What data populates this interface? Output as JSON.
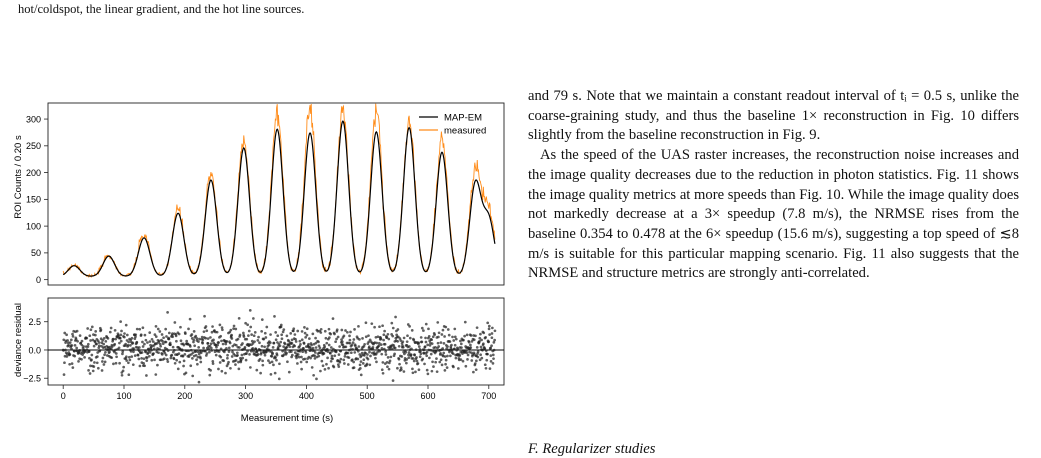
{
  "page": {
    "caption_tail": "hot/coldspot, the linear gradient, and the hot line sources.",
    "top_right_fragment": "",
    "para1": "and 79 s. Note that we maintain a constant readout interval of tᵢ = 0.5 s, unlike the coarse-graining study, and thus the baseline 1× reconstruction in Fig. 10 differs slightly from the baseline reconstruction in Fig. 9.",
    "para2": "As the speed of the UAS raster increases, the reconstruction noise increases and the image quality decreases due to the reduction in photon statistics. Fig. 11 shows the image quality metrics at more speeds than Fig. 10. While the image quality does not markedly decrease at a 3× speedup (7.8 m/s), the NRMSE rises from the baseline 0.354 to 0.478 at the 6× speedup (15.6 m/s), suggesting a top speed of ≲8 m/s is suitable for this particular mapping scenario. Fig. 11 also suggests that the NRMSE and structure metrics are strongly anti-correlated.",
    "section_heading": "F. Regularizer studies"
  },
  "chart_data": [
    {
      "type": "line",
      "ylabel": "ROI Counts / 0.20 s",
      "ylim": [
        -10,
        330
      ],
      "yticks": [
        0,
        50,
        100,
        150,
        200,
        250,
        300
      ],
      "xlim": [
        -25,
        725
      ],
      "legend_placement": "top-right",
      "series": [
        {
          "name": "MAP-EM",
          "color": "#000000",
          "peaks": [
            {
              "t": 18,
              "h": 20
            },
            {
              "t": 75,
              "h": 38
            },
            {
              "t": 133,
              "h": 72
            },
            {
              "t": 189,
              "h": 118
            },
            {
              "t": 243,
              "h": 180
            },
            {
              "t": 297,
              "h": 240
            },
            {
              "t": 352,
              "h": 275
            },
            {
              "t": 406,
              "h": 268
            },
            {
              "t": 460,
              "h": 290
            },
            {
              "t": 515,
              "h": 270
            },
            {
              "t": 569,
              "h": 278
            },
            {
              "t": 623,
              "h": 232
            },
            {
              "t": 678,
              "h": 172
            },
            {
              "t": 700,
              "h": 105
            }
          ]
        },
        {
          "name": "measured",
          "color": "#ff8c1a",
          "peaks": [
            {
              "t": 18,
              "h": 22
            },
            {
              "t": 75,
              "h": 40
            },
            {
              "t": 133,
              "h": 78
            },
            {
              "t": 189,
              "h": 125
            },
            {
              "t": 243,
              "h": 195
            },
            {
              "t": 297,
              "h": 260
            },
            {
              "t": 352,
              "h": 305
            },
            {
              "t": 406,
              "h": 312
            },
            {
              "t": 460,
              "h": 312
            },
            {
              "t": 515,
              "h": 308
            },
            {
              "t": 569,
              "h": 295
            },
            {
              "t": 623,
              "h": 255
            },
            {
              "t": 678,
              "h": 195
            },
            {
              "t": 700,
              "h": 118
            }
          ]
        }
      ]
    },
    {
      "type": "scatter",
      "ylabel": "deviance residual",
      "xlabel": "Measurement time (s)",
      "ylim": [
        -3.1,
        4.6
      ],
      "yticks": [
        -2.5,
        0.0,
        2.5
      ],
      "ytick_labels": [
        "−2.5",
        "0.0",
        "2.5"
      ],
      "xlim": [
        -25,
        725
      ],
      "xticks": [
        0,
        100,
        200,
        300,
        400,
        500,
        600,
        700
      ],
      "reference_line": 0,
      "point_color": "#222222",
      "x_range": [
        0,
        710
      ],
      "approx_point_count": 1400,
      "spread_sd": 1.15
    }
  ]
}
